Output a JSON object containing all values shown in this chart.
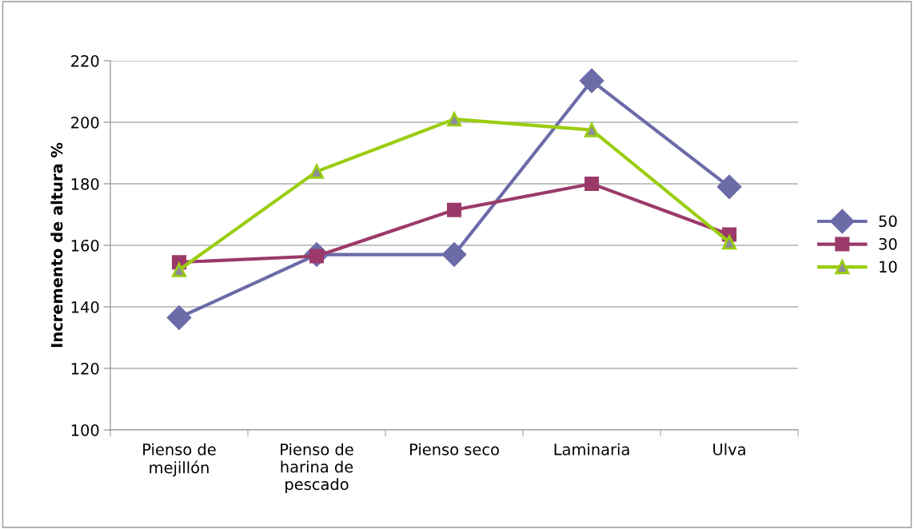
{
  "chart_data": {
    "type": "line",
    "ylabel": "Incremento de altura %",
    "categories": [
      "Pienso de\nmejillón",
      "Pienso de\nharina de\npescado",
      "Pienso seco",
      "Laminaria",
      "Ulva"
    ],
    "series": [
      {
        "name": "50",
        "color": "#6b6ba8",
        "marker": "diamond",
        "values": [
          136.5,
          157,
          157,
          213.5,
          179
        ]
      },
      {
        "name": "30",
        "color": "#9b3a6a",
        "marker": "square",
        "values": [
          154.5,
          156.5,
          171.5,
          180,
          163.5
        ]
      },
      {
        "name": "10",
        "color": "#9acd10",
        "marker": "triangle",
        "values": [
          152,
          184,
          201,
          197.5,
          161
        ]
      }
    ],
    "ylim": [
      100,
      220
    ],
    "yticks": [
      100,
      120,
      140,
      160,
      180,
      200,
      220
    ],
    "grid": "y",
    "legend": "right",
    "line_style": "solid"
  }
}
